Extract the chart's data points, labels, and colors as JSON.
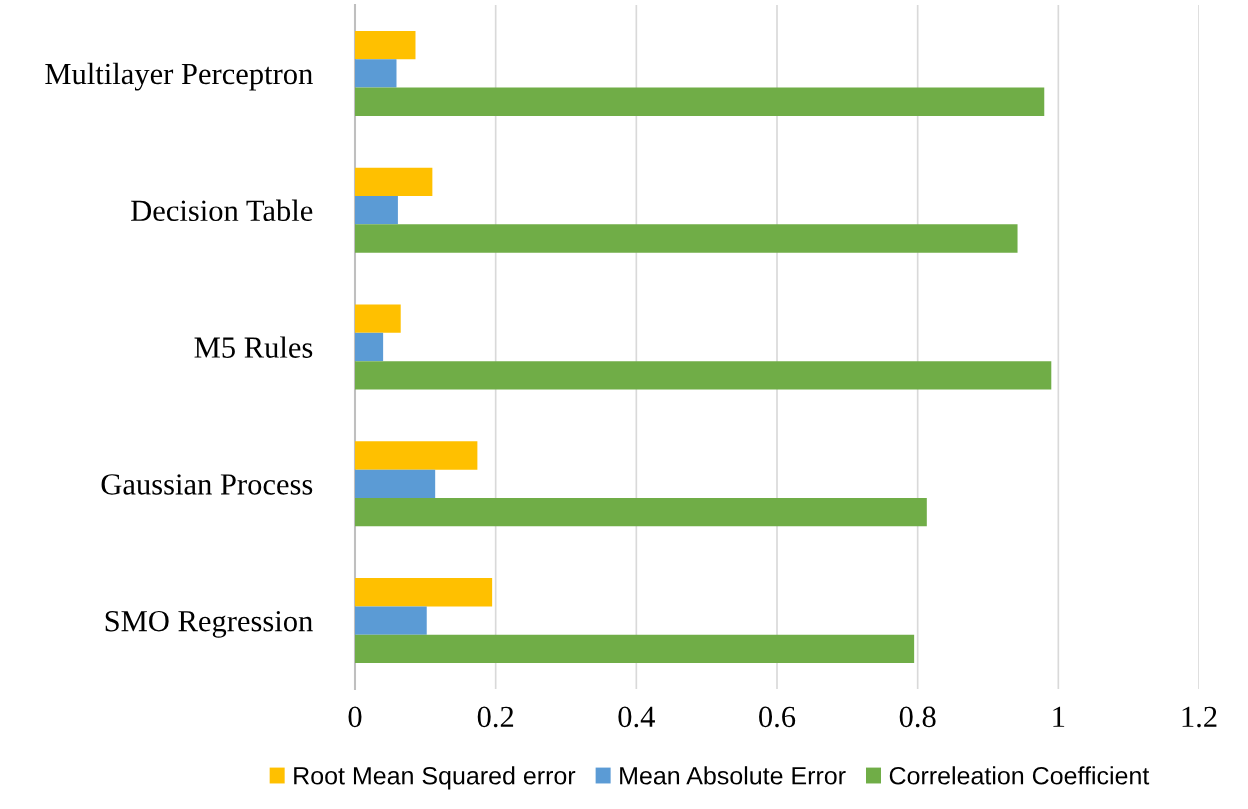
{
  "chart_data": {
    "type": "bar",
    "orientation": "horizontal",
    "categories": [
      "Multilayer Perceptron",
      "Decision Table",
      "M5 Rules",
      "Gaussian Process",
      "SMO Regression"
    ],
    "series": [
      {
        "name": "Root Mean Squared error",
        "color": "#ffc000",
        "values": [
          0.086,
          0.11,
          0.065,
          0.174,
          0.195
        ]
      },
      {
        "name": "Mean Absolute Error",
        "color": "#5b9bd5",
        "values": [
          0.059,
          0.061,
          0.04,
          0.114,
          0.102
        ]
      },
      {
        "name": "Correleation Coefficient",
        "color": "#70ad47",
        "values": [
          0.98,
          0.942,
          0.99,
          0.813,
          0.795
        ]
      }
    ],
    "xlim": [
      0,
      1.2
    ],
    "xticks": [
      0,
      0.2,
      0.4,
      0.6,
      0.8,
      1,
      1.2
    ],
    "grid": "x",
    "legend": "bottom"
  }
}
